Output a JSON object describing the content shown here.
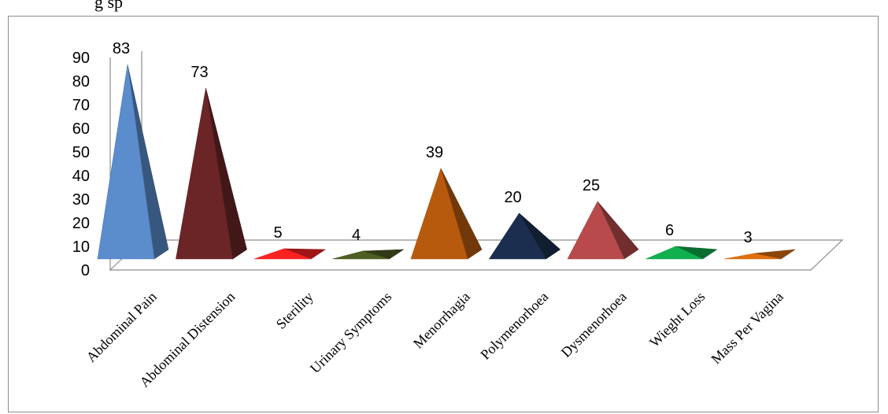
{
  "caption": "g sp",
  "chart_data": {
    "type": "bar",
    "categories": [
      "Abdominal Pain",
      "Abdominal Distension",
      "Sterility",
      "Urinary Symptoms",
      "Menorrhagia",
      "Polymenorhoea",
      "Dysmenorhoea",
      "Wieght Loss",
      "Mass Per Vagina"
    ],
    "values": [
      83,
      73,
      5,
      4,
      39,
      20,
      25,
      6,
      3
    ],
    "colors": [
      "#5b8ccc",
      "#6b2526",
      "#ff2222",
      "#4d5e22",
      "#b85a0e",
      "#1c2e4f",
      "#b84a4c",
      "#10b04e",
      "#e0700e"
    ],
    "yticks": [
      "0",
      "10",
      "20",
      "30",
      "40",
      "50",
      "60",
      "70",
      "80",
      "90"
    ],
    "ylim": [
      0,
      90
    ],
    "title": "",
    "xlabel": "",
    "ylabel": "",
    "grid": false,
    "legend": "none",
    "shape": "3d-pyramid"
  }
}
